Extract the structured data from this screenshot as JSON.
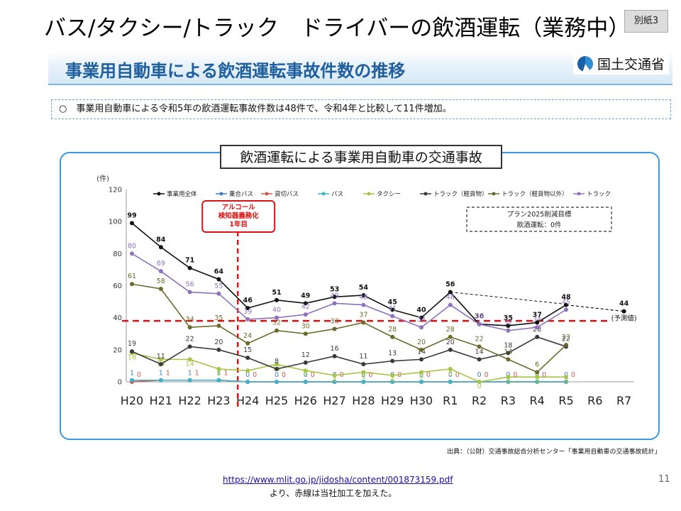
{
  "slide": {
    "title": "バス/タクシー/トラック　ドライバーの飲酒運転（業務中）",
    "badge": "別紙3",
    "banner_title": "事業用自動車による飲酒運転事故件数の推移",
    "ministry": "国土交通省",
    "summary": "○　事業用自動車による令和5年の飲酒運転事故件数は48件で、令和4年と比較して11件増加。",
    "panel_title": "飲酒運転による事業用自動車の交通事故",
    "source": "出典：（公財）交通事故総合分析センター「事業用自動車の交通事故統計」",
    "url": "https://www.mlit.go.jp/jidosha/content/001873159.pdf",
    "note": "より、赤線は当社加工を加えた。",
    "page_number": "11"
  },
  "chart_data": {
    "type": "line",
    "yunit": "(件)",
    "ylim": [
      0,
      120
    ],
    "yticks": [
      "0",
      "20",
      "40",
      "60",
      "80",
      "100",
      "120"
    ],
    "categories": [
      "H20",
      "H21",
      "H22",
      "H23",
      "H24",
      "H25",
      "H26",
      "H27",
      "H28",
      "H29",
      "H30",
      "R1",
      "R2",
      "R3",
      "R4",
      "R5",
      "R6",
      "R7"
    ],
    "series": [
      {
        "name": "事業用全体",
        "color": "#111111",
        "values": [
          99,
          84,
          71,
          64,
          46,
          51,
          49,
          53,
          54,
          45,
          40,
          56,
          36,
          35,
          37,
          48,
          null,
          null
        ],
        "labels": [
          "99",
          "84",
          "71",
          "64",
          "46",
          "51",
          "49",
          "53",
          "54",
          "45",
          "40",
          "56",
          "36",
          "35",
          "37",
          "48",
          "",
          ""
        ]
      },
      {
        "name": "乗合バス",
        "color": "#3f7fc4",
        "values": [
          1,
          1,
          1,
          1,
          0,
          0,
          0,
          0,
          0,
          0,
          0,
          0,
          0,
          0,
          0,
          0,
          null,
          null
        ],
        "labels": [
          "1",
          "1",
          "1",
          "1",
          "0",
          "0",
          "0",
          "0",
          "0",
          "0",
          "0",
          "0",
          "0",
          "0",
          "0",
          "0",
          "",
          ""
        ]
      },
      {
        "name": "貸切バス",
        "color": "#d6584e",
        "values": [
          0,
          1,
          1,
          1,
          0,
          0,
          0,
          0,
          0,
          0,
          0,
          0,
          0,
          0,
          0,
          0,
          null,
          null
        ],
        "labels": [
          "0",
          "1",
          "1",
          "1",
          "0",
          "0",
          "0",
          "0",
          "0",
          "0",
          "0",
          "0",
          "0",
          "0",
          "0",
          "0",
          "",
          ""
        ]
      },
      {
        "name": "バス",
        "color": "#3fb3c8",
        "values": [
          1,
          1,
          1,
          1,
          0,
          0,
          0,
          0,
          0,
          0,
          0,
          0,
          0,
          0,
          0,
          0,
          null,
          null
        ],
        "labels": [
          "",
          "",
          "",
          "",
          "",
          "",
          "",
          "",
          "",
          "",
          "",
          "",
          "",
          "",
          "",
          "",
          "",
          ""
        ]
      },
      {
        "name": "タクシー",
        "color": "#a8c54a",
        "values": [
          18,
          14,
          14,
          8,
          7,
          11,
          7,
          4,
          6,
          4,
          6,
          8,
          0,
          3,
          3,
          3,
          null,
          null
        ],
        "labels": [
          "18",
          "14",
          "14",
          "8",
          "",
          "11",
          "7",
          "4",
          "6",
          "4",
          "6",
          "8",
          "0",
          "3",
          "3",
          "3",
          "",
          ""
        ]
      },
      {
        "name": "トラック（軽貨物）",
        "color": "#3a3a3a",
        "values": [
          19,
          11,
          22,
          20,
          15,
          8,
          12,
          16,
          11,
          13,
          14,
          20,
          14,
          18,
          28,
          22,
          null,
          null
        ],
        "labels": [
          "19",
          "11",
          "22",
          "20",
          "15",
          "8",
          "12",
          "16",
          "11",
          "13",
          "14",
          "20",
          "14",
          "18",
          "28",
          "22",
          "",
          ""
        ]
      },
      {
        "name": "トラック（軽貨物以外）",
        "color": "#6b6a2b",
        "values": [
          61,
          58,
          34,
          35,
          24,
          32,
          30,
          33,
          37,
          28,
          20,
          28,
          22,
          14,
          6,
          23,
          null,
          null
        ],
        "labels": [
          "61",
          "58",
          "34",
          "35",
          "24",
          "32",
          "30",
          "33",
          "37",
          "28",
          "20",
          "28",
          "22",
          "14",
          "6",
          "23",
          "",
          ""
        ]
      },
      {
        "name": "トラック",
        "color": "#8f72bd",
        "values": [
          80,
          69,
          56,
          55,
          39,
          40,
          42,
          49,
          48,
          41,
          34,
          48,
          36,
          32,
          34,
          45,
          null,
          null
        ],
        "labels": [
          "80",
          "69",
          "56",
          "55",
          "39",
          "40",
          "42",
          "49",
          "48",
          "41",
          "34",
          "48",
          "36",
          "32",
          "34",
          "45",
          "",
          ""
        ]
      }
    ],
    "target_line": {
      "from_category": "R5",
      "from_value": 48,
      "to_category": "R7",
      "to_value": 44,
      "label": "44",
      "note": "(予測値)"
    },
    "target_box": [
      "プラン2025削減目標",
      "飲酒運転：0件"
    ],
    "vline": {
      "category": "H24",
      "label": [
        "アルコール",
        "検知器義務化",
        "1年目"
      ],
      "color": "#dd1111"
    },
    "hline": {
      "value": 38,
      "color": "#dd1111"
    }
  }
}
